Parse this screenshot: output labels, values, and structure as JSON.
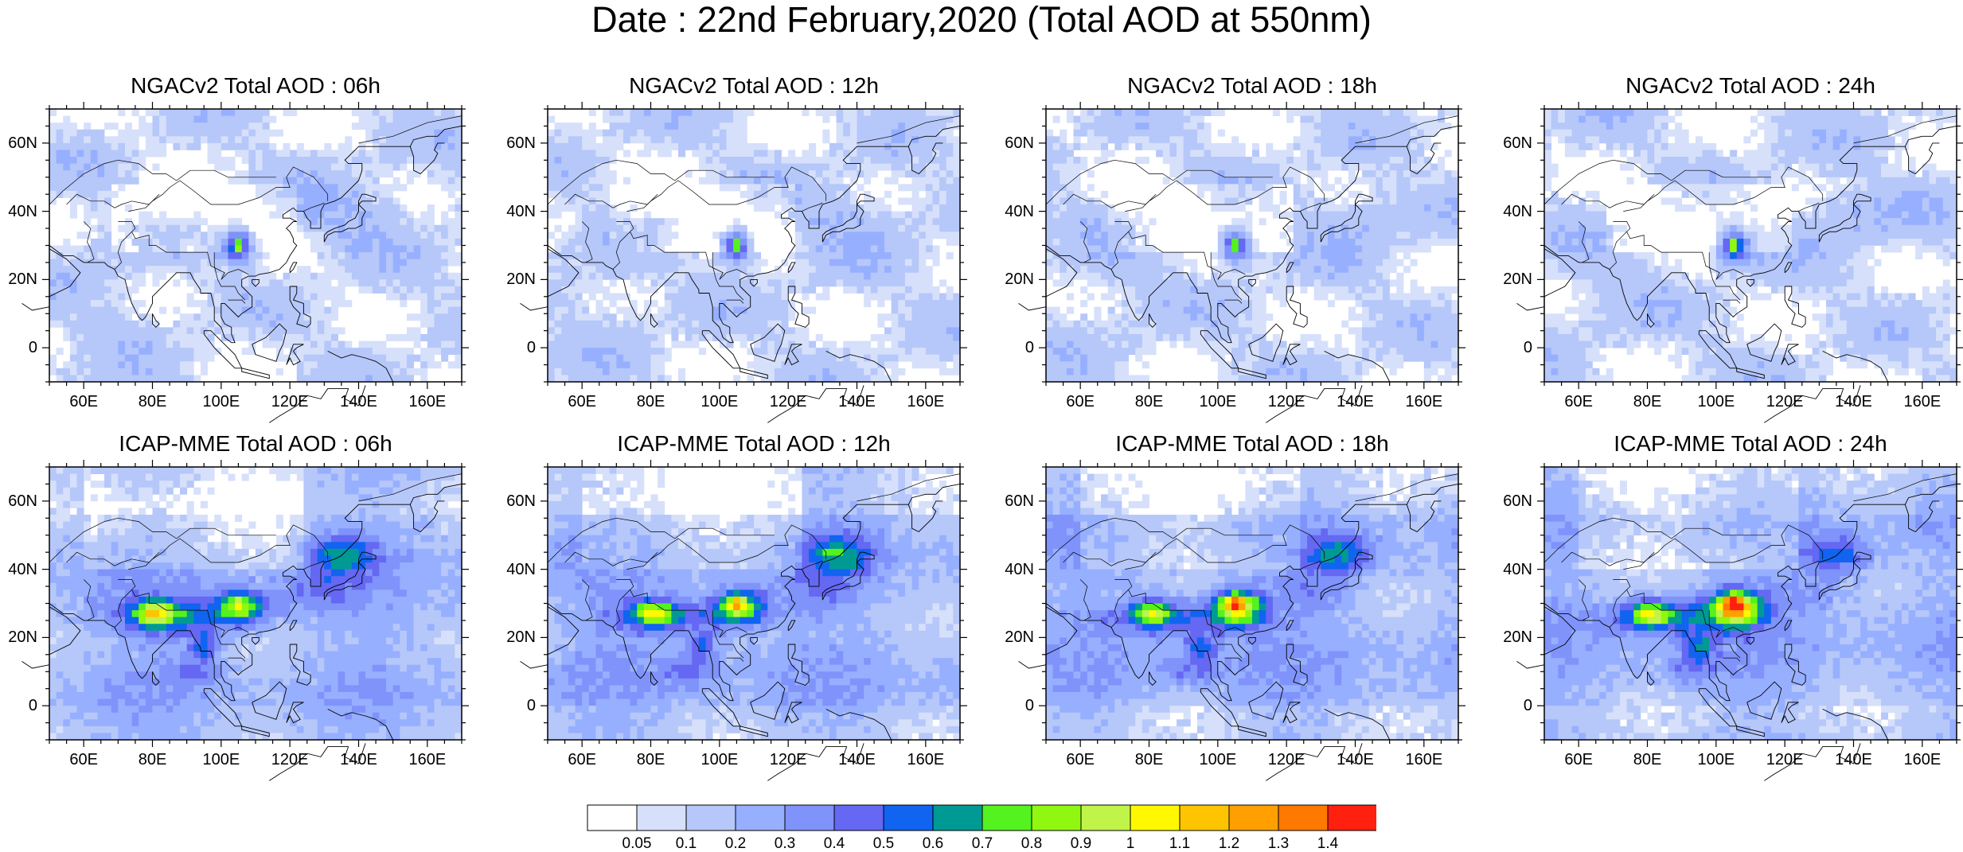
{
  "title": "Date : 22nd February,2020 (Total AOD at 550nm)",
  "panels": [
    {
      "title": "NGACv2 Total AOD : 06h",
      "model": "NGACv2",
      "hour": "06h"
    },
    {
      "title": "NGACv2 Total AOD : 12h",
      "model": "NGACv2",
      "hour": "12h"
    },
    {
      "title": "NGACv2 Total AOD : 18h",
      "model": "NGACv2",
      "hour": "18h"
    },
    {
      "title": "NGACv2 Total AOD : 24h",
      "model": "NGACv2",
      "hour": "24h"
    },
    {
      "title": "ICAP-MME Total AOD : 06h",
      "model": "ICAP-MME",
      "hour": "06h"
    },
    {
      "title": "ICAP-MME Total AOD : 12h",
      "model": "ICAP-MME",
      "hour": "12h"
    },
    {
      "title": "ICAP-MME Total AOD : 18h",
      "model": "ICAP-MME",
      "hour": "18h"
    },
    {
      "title": "ICAP-MME Total AOD : 24h",
      "model": "ICAP-MME",
      "hour": "24h"
    }
  ],
  "axes": {
    "lon_range": [
      50,
      170
    ],
    "lat_range": [
      -10,
      70
    ],
    "lat_ticks": [
      {
        "value": 60,
        "label": "60N"
      },
      {
        "value": 40,
        "label": "40N"
      },
      {
        "value": 20,
        "label": "20N"
      },
      {
        "value": 0,
        "label": "0"
      }
    ],
    "lon_ticks": [
      {
        "value": 60,
        "label": "60E"
      },
      {
        "value": 80,
        "label": "80E"
      },
      {
        "value": 100,
        "label": "100E"
      },
      {
        "value": 120,
        "label": "120E"
      },
      {
        "value": 140,
        "label": "140E"
      },
      {
        "value": 160,
        "label": "160E"
      }
    ]
  },
  "colorbar": {
    "colors": [
      "#ffffff",
      "#d6e0fb",
      "#b6c7f9",
      "#97afff",
      "#7f93fb",
      "#6468f2",
      "#1064f0",
      "#009a94",
      "#54f21e",
      "#90f810",
      "#c0f448",
      "#fff800",
      "#ffc400",
      "#ffa000",
      "#ff7800",
      "#ff2010"
    ],
    "labels": [
      "0.05",
      "0.1",
      "0.2",
      "0.3",
      "0.4",
      "0.5",
      "0.6",
      "0.7",
      "0.8",
      "0.9",
      "1",
      "1.1",
      "1.2",
      "1.3",
      "1.4"
    ]
  },
  "hotspots": [
    {
      "panel": 0,
      "lon": 105,
      "lat": 30,
      "max_aod": 1.0
    },
    {
      "panel": 1,
      "lon": 105,
      "lat": 30,
      "max_aod": 1.0
    },
    {
      "panel": 2,
      "lon": 104,
      "lat": 30,
      "max_aod": 1.0
    },
    {
      "panel": 3,
      "lon": 105,
      "lat": 30,
      "max_aod": 1.0
    },
    {
      "panel": 4,
      "lon": 80,
      "lat": 28,
      "max_aod": 1.1
    },
    {
      "panel": 5,
      "lon": 105,
      "lat": 29,
      "max_aod": 1.3
    },
    {
      "panel": 6,
      "lon": 105,
      "lat": 29,
      "max_aod": 1.4
    },
    {
      "panel": 7,
      "lon": 105,
      "lat": 30,
      "max_aod": 1.4
    }
  ]
}
